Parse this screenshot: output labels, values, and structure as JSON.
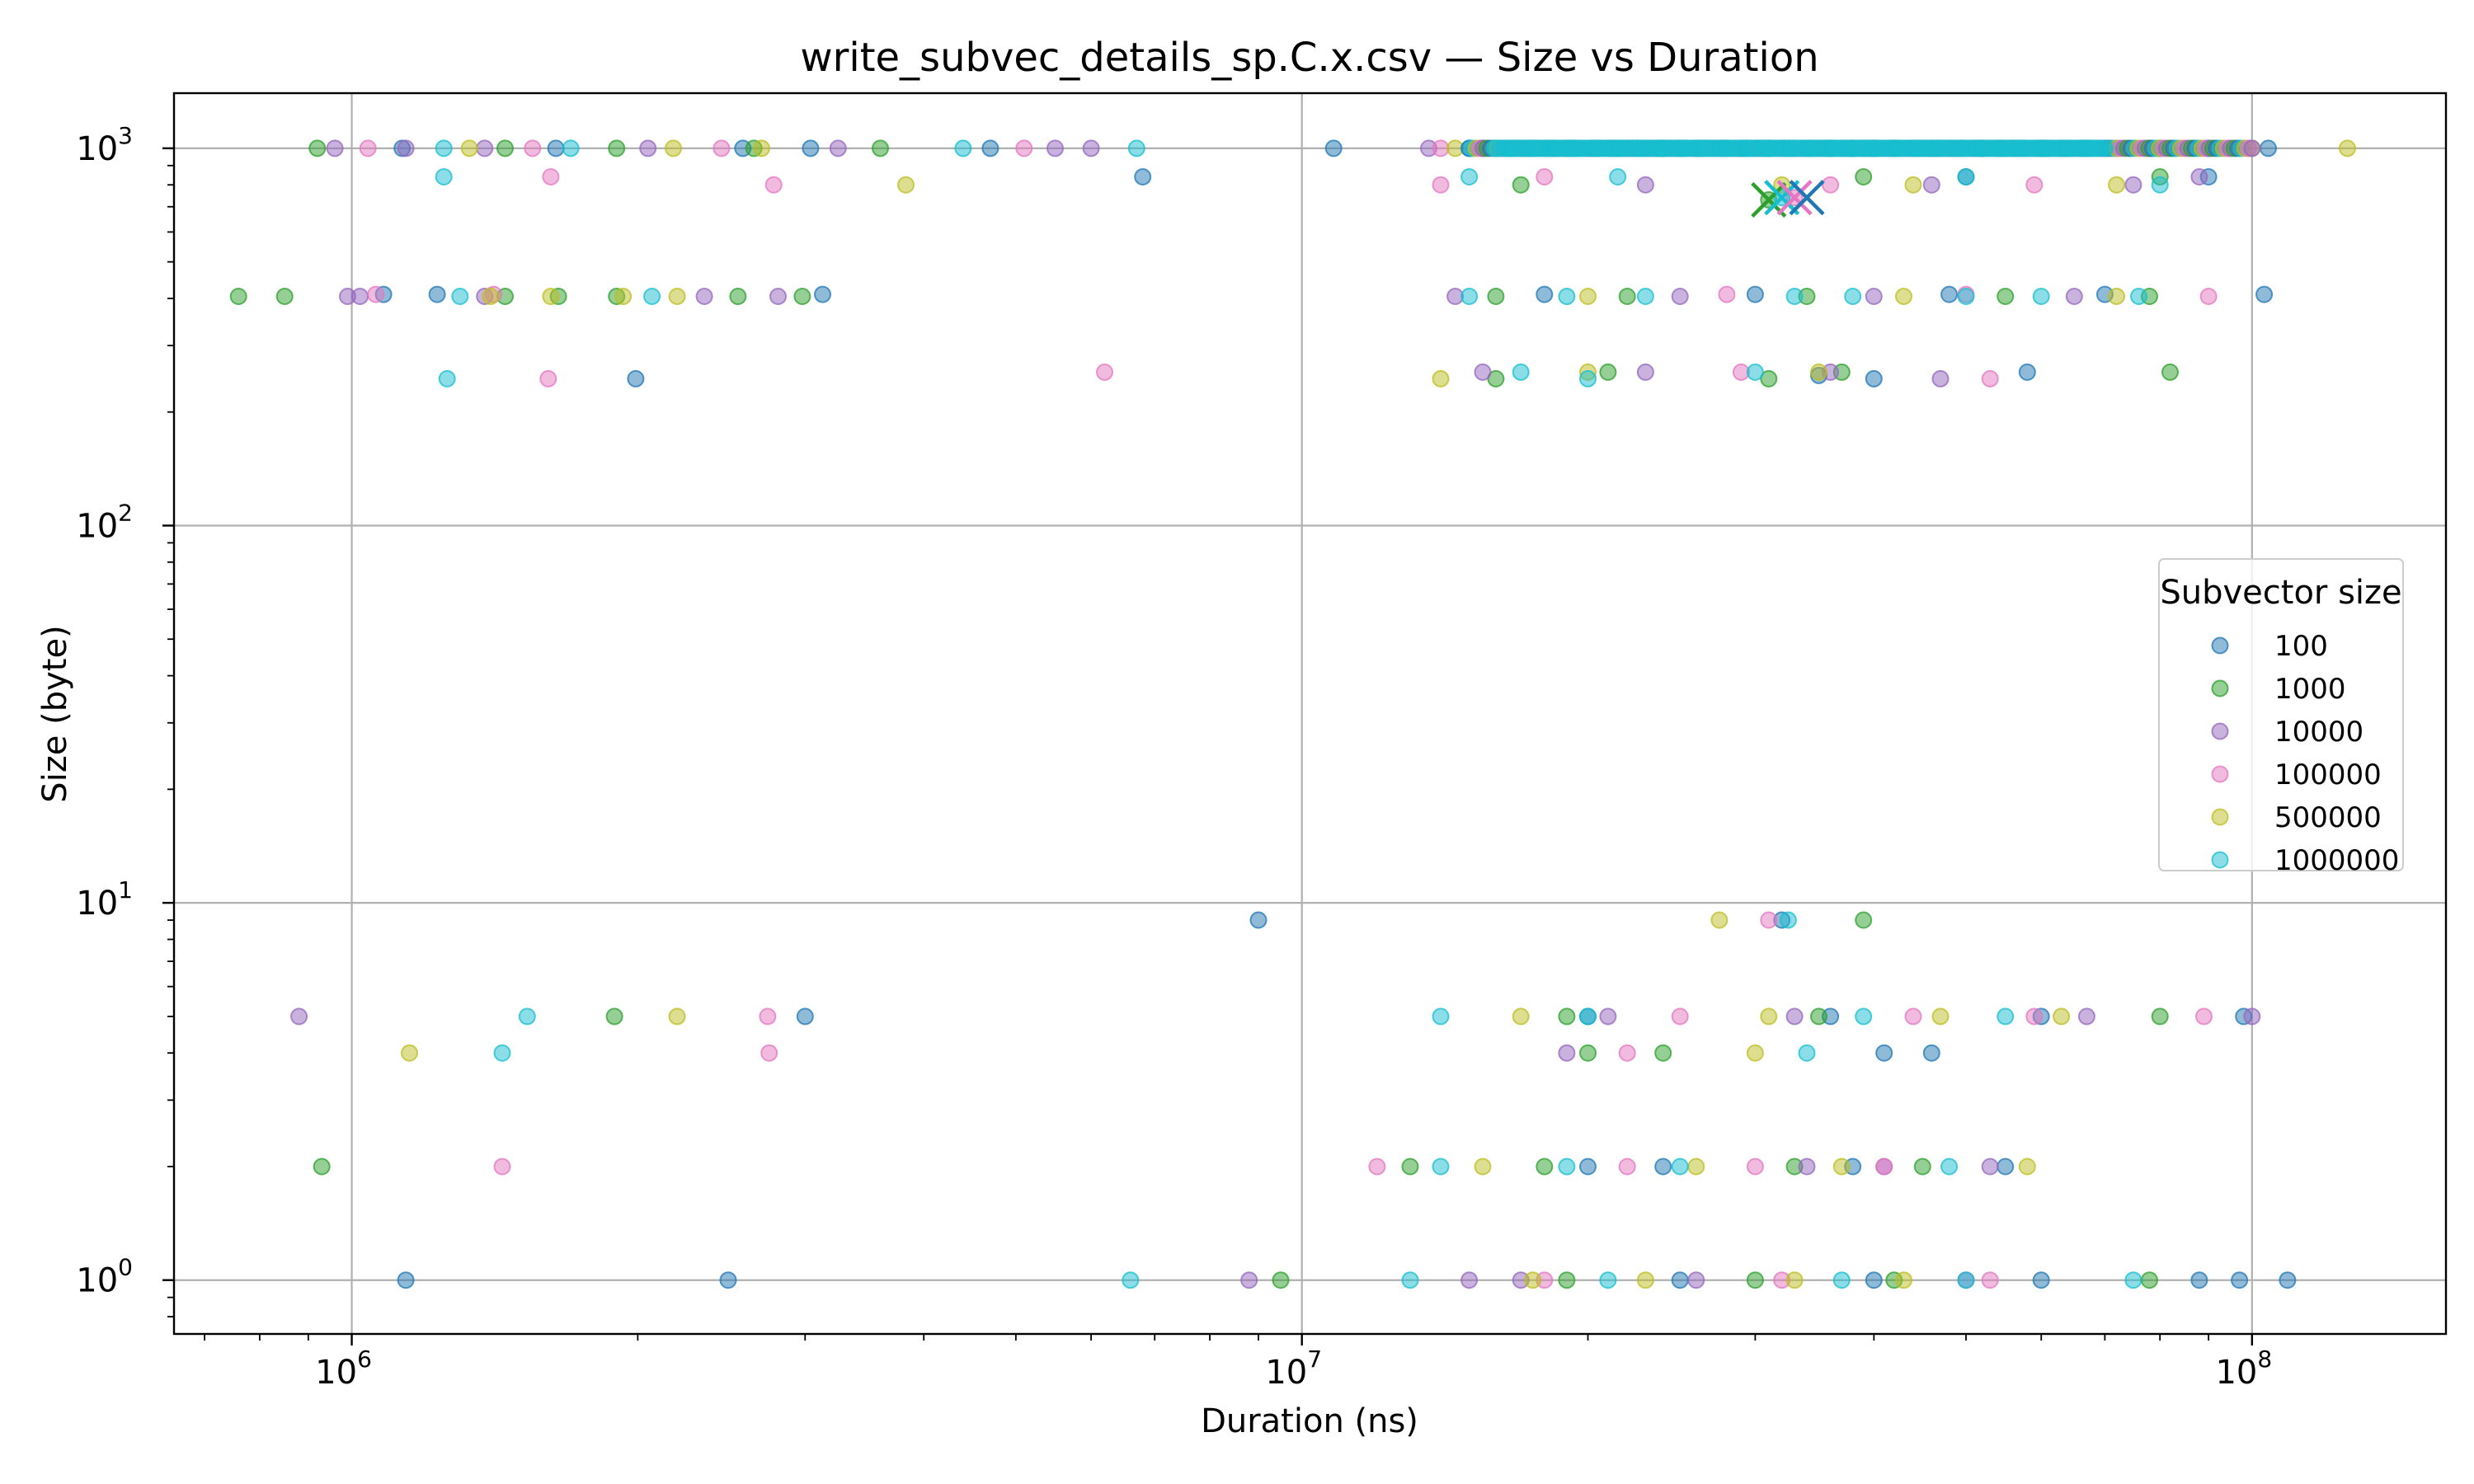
{
  "chart_data": {
    "type": "scatter",
    "title": "write_subvec_details_sp.C.x.csv — Size vs Duration",
    "xlabel": "Duration (ns)",
    "ylabel": "Size (byte)",
    "xscale": "log",
    "yscale": "log",
    "xlim": [
      650000,
      160000000
    ],
    "ylim": [
      0.72,
      1400
    ],
    "x_major_ticks": [
      {
        "value": 1000000,
        "label": "10",
        "exp": "6"
      },
      {
        "value": 10000000,
        "label": "10",
        "exp": "7"
      },
      {
        "value": 100000000,
        "label": "10",
        "exp": "8"
      }
    ],
    "y_major_ticks": [
      {
        "value": 1,
        "label": "10",
        "exp": "0"
      },
      {
        "value": 10,
        "label": "10",
        "exp": "1"
      },
      {
        "value": 100,
        "label": "10",
        "exp": "2"
      },
      {
        "value": 1000,
        "label": "10",
        "exp": "3"
      }
    ],
    "grid": true,
    "legend": {
      "title": "Subvector size",
      "placement": "right"
    },
    "series": [
      {
        "name": "100",
        "color": "#1f77b4",
        "points": [
          [
            1130000,
            1000
          ],
          [
            1640000,
            1000
          ],
          [
            2580000,
            1000
          ],
          [
            3040000,
            1000
          ],
          [
            4700000,
            1000
          ],
          [
            10800000,
            1000
          ],
          [
            15500000,
            1000
          ],
          [
            24000000,
            1000
          ],
          [
            38000000,
            1000
          ],
          [
            60000000,
            1000
          ],
          [
            90000000,
            1000
          ],
          [
            104000000,
            1000
          ],
          [
            6800000,
            840
          ],
          [
            50000000,
            840
          ],
          [
            90000000,
            840
          ],
          [
            1080000,
            410
          ],
          [
            1230000,
            410
          ],
          [
            3130000,
            410
          ],
          [
            18000000,
            410
          ],
          [
            30000000,
            410
          ],
          [
            48000000,
            410
          ],
          [
            70000000,
            410
          ],
          [
            103000000,
            410
          ],
          [
            1990000,
            245
          ],
          [
            35000000,
            250
          ],
          [
            40000000,
            245
          ],
          [
            58000000,
            255
          ],
          [
            9000000,
            9
          ],
          [
            32000000,
            9
          ],
          [
            3000000,
            5
          ],
          [
            20000000,
            5
          ],
          [
            36000000,
            5
          ],
          [
            60000000,
            5
          ],
          [
            98000000,
            5
          ],
          [
            41000000,
            4
          ],
          [
            46000000,
            4
          ],
          [
            20000000,
            2
          ],
          [
            24000000,
            2
          ],
          [
            38000000,
            2
          ],
          [
            55000000,
            2
          ],
          [
            1140000,
            1
          ],
          [
            2490000,
            1
          ],
          [
            25000000,
            1
          ],
          [
            40000000,
            1
          ],
          [
            60000000,
            1
          ],
          [
            88000000,
            1
          ],
          [
            97000000,
            1
          ],
          [
            109000000,
            1
          ]
        ]
      },
      {
        "name": "1000",
        "color": "#2ca02c",
        "points": [
          [
            920000,
            1000
          ],
          [
            1450000,
            1000
          ],
          [
            1900000,
            1000
          ],
          [
            2650000,
            1000
          ],
          [
            3600000,
            1000
          ],
          [
            16000000,
            1000
          ],
          [
            26000000,
            1000
          ],
          [
            40000000,
            1000
          ],
          [
            56000000,
            1000
          ],
          [
            80000000,
            1000
          ],
          [
            17000000,
            800
          ],
          [
            39000000,
            840
          ],
          [
            80000000,
            840
          ],
          [
            760000,
            405
          ],
          [
            850000,
            405
          ],
          [
            1450000,
            405
          ],
          [
            1650000,
            405
          ],
          [
            1900000,
            405
          ],
          [
            2550000,
            405
          ],
          [
            2980000,
            405
          ],
          [
            16000000,
            405
          ],
          [
            22000000,
            405
          ],
          [
            34000000,
            405
          ],
          [
            55000000,
            405
          ],
          [
            78000000,
            405
          ],
          [
            16000000,
            245
          ],
          [
            21000000,
            255
          ],
          [
            31000000,
            245
          ],
          [
            37000000,
            255
          ],
          [
            82000000,
            255
          ],
          [
            39000000,
            9
          ],
          [
            1890000,
            5
          ],
          [
            19000000,
            5
          ],
          [
            35000000,
            5
          ],
          [
            80000000,
            5
          ],
          [
            20000000,
            4
          ],
          [
            24000000,
            4
          ],
          [
            930000,
            2
          ],
          [
            13000000,
            2
          ],
          [
            18000000,
            2
          ],
          [
            33000000,
            2
          ],
          [
            45000000,
            2
          ],
          [
            9500000,
            1
          ],
          [
            19000000,
            1
          ],
          [
            30000000,
            1
          ],
          [
            42000000,
            1
          ],
          [
            78000000,
            1
          ],
          [
            31000000,
            730
          ]
        ]
      },
      {
        "name": "10000",
        "color": "#9467bd",
        "points": [
          [
            960000,
            1000
          ],
          [
            1140000,
            1000
          ],
          [
            1380000,
            1000
          ],
          [
            2050000,
            1000
          ],
          [
            3250000,
            1000
          ],
          [
            5500000,
            1000
          ],
          [
            6000000,
            1000
          ],
          [
            13600000,
            1000
          ],
          [
            22000000,
            1000
          ],
          [
            36000000,
            1000
          ],
          [
            52000000,
            1000
          ],
          [
            78000000,
            1000
          ],
          [
            23000000,
            800
          ],
          [
            46000000,
            800
          ],
          [
            75000000,
            800
          ],
          [
            88000000,
            840
          ],
          [
            990000,
            405
          ],
          [
            1020000,
            405
          ],
          [
            1380000,
            405
          ],
          [
            2350000,
            405
          ],
          [
            2810000,
            405
          ],
          [
            14500000,
            405
          ],
          [
            25000000,
            405
          ],
          [
            40000000,
            405
          ],
          [
            65000000,
            405
          ],
          [
            15500000,
            255
          ],
          [
            23000000,
            255
          ],
          [
            36000000,
            255
          ],
          [
            47000000,
            245
          ],
          [
            880000,
            5
          ],
          [
            21000000,
            5
          ],
          [
            33000000,
            5
          ],
          [
            67000000,
            5
          ],
          [
            100000000,
            5
          ],
          [
            19000000,
            4
          ],
          [
            34000000,
            2
          ],
          [
            41000000,
            2
          ],
          [
            53000000,
            2
          ],
          [
            8800000,
            1
          ],
          [
            15000000,
            1
          ],
          [
            17000000,
            1
          ],
          [
            26000000,
            1
          ],
          [
            50000000,
            1
          ]
        ]
      },
      {
        "name": "100000",
        "color": "#e377c2",
        "points": [
          [
            1040000,
            1000
          ],
          [
            1550000,
            1000
          ],
          [
            2450000,
            1000
          ],
          [
            5100000,
            1000
          ],
          [
            14000000,
            1000
          ],
          [
            28000000,
            1000
          ],
          [
            46000000,
            1000
          ],
          [
            70000000,
            1000
          ],
          [
            1620000,
            840
          ],
          [
            2780000,
            800
          ],
          [
            14000000,
            800
          ],
          [
            18000000,
            840
          ],
          [
            36000000,
            800
          ],
          [
            59000000,
            800
          ],
          [
            1060000,
            410
          ],
          [
            1410000,
            410
          ],
          [
            28000000,
            410
          ],
          [
            50000000,
            410
          ],
          [
            90000000,
            405
          ],
          [
            1610000,
            245
          ],
          [
            6200000,
            255
          ],
          [
            29000000,
            255
          ],
          [
            53000000,
            245
          ],
          [
            31000000,
            9
          ],
          [
            2750000,
            4
          ],
          [
            22000000,
            4
          ],
          [
            2740000,
            5
          ],
          [
            25000000,
            5
          ],
          [
            44000000,
            5
          ],
          [
            59000000,
            5
          ],
          [
            89000000,
            5
          ],
          [
            1440000,
            2
          ],
          [
            12000000,
            2
          ],
          [
            22000000,
            2
          ],
          [
            30000000,
            2
          ],
          [
            41000000,
            2
          ],
          [
            18000000,
            1
          ],
          [
            32000000,
            1
          ],
          [
            53000000,
            1
          ],
          [
            33000000,
            740
          ]
        ]
      },
      {
        "name": "500000",
        "color": "#bcbd22",
        "points": [
          [
            1330000,
            1000
          ],
          [
            2180000,
            1000
          ],
          [
            2700000,
            1000
          ],
          [
            14500000,
            1000
          ],
          [
            30000000,
            1000
          ],
          [
            48000000,
            1000
          ],
          [
            100000000,
            1000
          ],
          [
            126000000,
            1000
          ],
          [
            3830000,
            800
          ],
          [
            32000000,
            800
          ],
          [
            44000000,
            800
          ],
          [
            72000000,
            800
          ],
          [
            1400000,
            405
          ],
          [
            1620000,
            405
          ],
          [
            1930000,
            405
          ],
          [
            2200000,
            405
          ],
          [
            20000000,
            405
          ],
          [
            43000000,
            405
          ],
          [
            72000000,
            405
          ],
          [
            14000000,
            245
          ],
          [
            20000000,
            255
          ],
          [
            35000000,
            255
          ],
          [
            27500000,
            9
          ],
          [
            2200000,
            5
          ],
          [
            17000000,
            5
          ],
          [
            31000000,
            5
          ],
          [
            47000000,
            5
          ],
          [
            63000000,
            5
          ],
          [
            1150000,
            4
          ],
          [
            30000000,
            4
          ],
          [
            15500000,
            2
          ],
          [
            26000000,
            2
          ],
          [
            37000000,
            2
          ],
          [
            58000000,
            2
          ],
          [
            17500000,
            1
          ],
          [
            23000000,
            1
          ],
          [
            33000000,
            1
          ],
          [
            43000000,
            1
          ]
        ]
      },
      {
        "name": "1000000",
        "color": "#17becf",
        "points": [
          [
            1250000,
            1000
          ],
          [
            1700000,
            1000
          ],
          [
            4400000,
            1000
          ],
          [
            6700000,
            1000
          ],
          [
            15000000,
            1000
          ],
          [
            17000000,
            1000
          ],
          [
            19000000,
            1000
          ],
          [
            21000000,
            1000
          ],
          [
            23000000,
            1000
          ],
          [
            25000000,
            1000
          ],
          [
            27000000,
            1000
          ],
          [
            29000000,
            1000
          ],
          [
            31000000,
            1000
          ],
          [
            33000000,
            1000
          ],
          [
            35000000,
            1000
          ],
          [
            37000000,
            1000
          ],
          [
            39000000,
            1000
          ],
          [
            42000000,
            1000
          ],
          [
            45000000,
            1000
          ],
          [
            48000000,
            1000
          ],
          [
            52000000,
            1000
          ],
          [
            56000000,
            1000
          ],
          [
            61000000,
            1000
          ],
          [
            66000000,
            1000
          ],
          [
            72000000,
            1000
          ],
          [
            80000000,
            1000
          ],
          [
            90000000,
            1000
          ],
          [
            1250000,
            840
          ],
          [
            15000000,
            840
          ],
          [
            21500000,
            840
          ],
          [
            50000000,
            840
          ],
          [
            80000000,
            800
          ],
          [
            1300000,
            405
          ],
          [
            2070000,
            405
          ],
          [
            15000000,
            405
          ],
          [
            19000000,
            405
          ],
          [
            23000000,
            405
          ],
          [
            33000000,
            405
          ],
          [
            38000000,
            405
          ],
          [
            50000000,
            405
          ],
          [
            60000000,
            405
          ],
          [
            76000000,
            405
          ],
          [
            1260000,
            245
          ],
          [
            17000000,
            255
          ],
          [
            20000000,
            245
          ],
          [
            30000000,
            255
          ],
          [
            32500000,
            9
          ],
          [
            1530000,
            5
          ],
          [
            14000000,
            5
          ],
          [
            20000000,
            5
          ],
          [
            39000000,
            5
          ],
          [
            55000000,
            5
          ],
          [
            1440000,
            4
          ],
          [
            34000000,
            4
          ],
          [
            14000000,
            2
          ],
          [
            19000000,
            2
          ],
          [
            25000000,
            2
          ],
          [
            48000000,
            2
          ],
          [
            6600000,
            1
          ],
          [
            13000000,
            1
          ],
          [
            21000000,
            1
          ],
          [
            37000000,
            1
          ],
          [
            50000000,
            1
          ],
          [
            75000000,
            1
          ],
          [
            32000000,
            740
          ]
        ]
      }
    ],
    "markers_x": [
      {
        "series": "1000",
        "color": "#2ca02c",
        "x": 31000000,
        "y": 730
      },
      {
        "series": "1000000",
        "color": "#17becf",
        "x": 32000000,
        "y": 740
      },
      {
        "series": "100000",
        "color": "#e377c2",
        "x": 33000000,
        "y": 740
      },
      {
        "series": "100",
        "color": "#1f77b4",
        "x": 34000000,
        "y": 740
      }
    ]
  }
}
